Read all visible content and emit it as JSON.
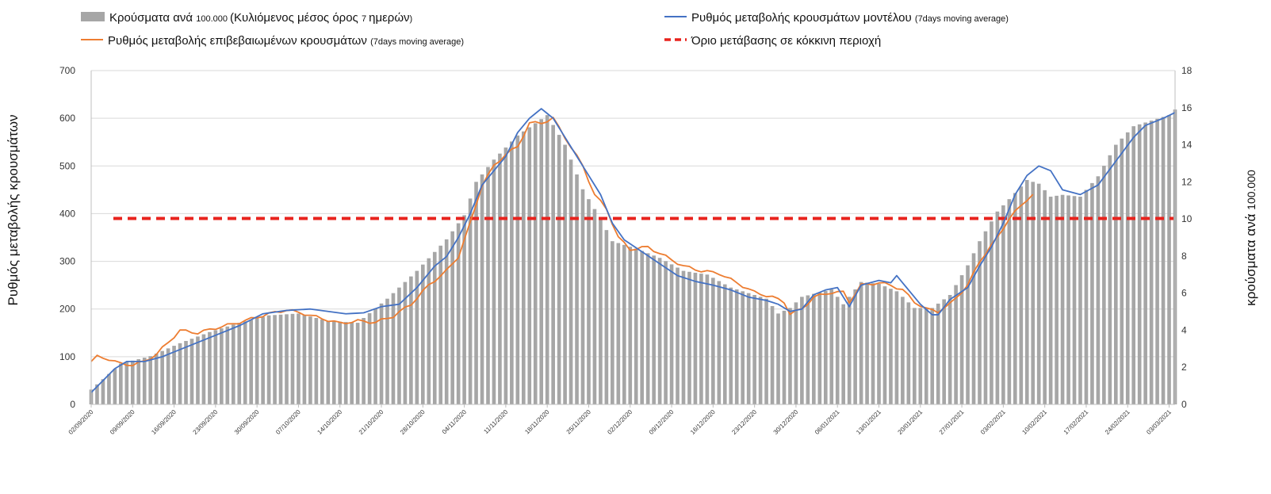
{
  "chart_data": {
    "type": "bar+line",
    "legend": {
      "bars": {
        "main": "Κρούσματα ανά ",
        "small": "100.000 ",
        "main2": "(Κυλιόμενος μέσος όρος ",
        "small2": "7 ",
        "main3": "ημερών",
        "small3": ")"
      },
      "confirmed": {
        "main": "Ρυθμός μεταβολής επιβεβαιωμένων κρουσμάτων ",
        "small": "(7days moving average)"
      },
      "model": {
        "main": "Ρυθμός μεταβολής κρουσμάτων μοντέλου ",
        "small": "(7days moving average)"
      },
      "threshold": {
        "main": "Όριο μετάβασης σε κόκκινη περιοχή"
      }
    },
    "y_left": {
      "label": "Ρυθμός μεταβολής κρουσμάτων",
      "min": 0,
      "max": 700,
      "ticks": [
        "0",
        "100",
        "200",
        "300",
        "400",
        "500",
        "600",
        "700"
      ]
    },
    "y_right": {
      "label_main": "κρούσματα ανά ",
      "label_small": "100.000",
      "min": 0,
      "max": 18,
      "ticks": [
        "0",
        "2",
        "4",
        "6",
        "8",
        "10",
        "12",
        "14",
        "16",
        "18"
      ]
    },
    "x_labels": [
      "02/09/2020",
      "09/09/2020",
      "16/09/2020",
      "23/09/2020",
      "30/09/2020",
      "07/10/2020",
      "14/10/2020",
      "21/10/2020",
      "28/10/2020",
      "04/11/2020",
      "11/11/2020",
      "18/11/2020",
      "25/11/2020",
      "02/12/2020",
      "09/12/2020",
      "16/12/2020",
      "23/12/2020",
      "30/12/2020",
      "06/01/2021",
      "13/01/2021",
      "20/01/2021",
      "27/01/2021",
      "03/02/2021",
      "10/02/2021",
      "17/02/2021",
      "24/02/2021",
      "03/03/2021"
    ],
    "x_label_days": [
      0,
      7,
      14,
      21,
      28,
      35,
      42,
      49,
      56,
      63,
      70,
      77,
      84,
      91,
      98,
      105,
      112,
      119,
      126,
      133,
      140,
      147,
      154,
      161,
      168,
      175,
      182
    ],
    "n_days": 184,
    "threshold_value": 390,
    "colors": {
      "bars": "#a6a6a6",
      "confirmed": "#ed7d31",
      "model": "#4472c4",
      "threshold": "#e8231d"
    },
    "bars_anchors": [
      [
        0,
        0.8
      ],
      [
        5,
        2.2
      ],
      [
        10,
        2.6
      ],
      [
        15,
        3.3
      ],
      [
        20,
        3.9
      ],
      [
        25,
        4.4
      ],
      [
        30,
        4.8
      ],
      [
        35,
        4.9
      ],
      [
        40,
        4.5
      ],
      [
        45,
        4.4
      ],
      [
        50,
        5.7
      ],
      [
        55,
        7.2
      ],
      [
        60,
        8.9
      ],
      [
        63,
        10.2
      ],
      [
        65,
        12.0
      ],
      [
        68,
        13.2
      ],
      [
        72,
        14.5
      ],
      [
        77,
        15.6
      ],
      [
        80,
        14.0
      ],
      [
        83,
        11.6
      ],
      [
        86,
        10.0
      ],
      [
        88,
        8.8
      ],
      [
        92,
        8.4
      ],
      [
        96,
        7.9
      ],
      [
        100,
        7.2
      ],
      [
        104,
        7.0
      ],
      [
        108,
        6.3
      ],
      [
        112,
        5.9
      ],
      [
        114,
        5.7
      ],
      [
        116,
        4.9
      ],
      [
        118,
        5.2
      ],
      [
        120,
        5.8
      ],
      [
        125,
        6.2
      ],
      [
        127,
        5.4
      ],
      [
        130,
        6.6
      ],
      [
        133,
        6.5
      ],
      [
        136,
        6.1
      ],
      [
        139,
        5.2
      ],
      [
        142,
        5.2
      ],
      [
        145,
        5.9
      ],
      [
        148,
        7.5
      ],
      [
        150,
        8.8
      ],
      [
        153,
        10.4
      ],
      [
        156,
        11.4
      ],
      [
        158,
        12.1
      ],
      [
        160,
        11.9
      ],
      [
        162,
        11.2
      ],
      [
        164,
        11.3
      ],
      [
        167,
        11.2
      ],
      [
        170,
        12.3
      ],
      [
        173,
        14.0
      ],
      [
        176,
        15.0
      ],
      [
        180,
        15.4
      ],
      [
        182,
        15.6
      ],
      [
        183,
        15.9
      ]
    ],
    "confirmed_anchors": [
      [
        0,
        90
      ],
      [
        1,
        100
      ],
      [
        3,
        95
      ],
      [
        5,
        85
      ],
      [
        7,
        83
      ],
      [
        9,
        90
      ],
      [
        11,
        105
      ],
      [
        13,
        130
      ],
      [
        15,
        155
      ],
      [
        18,
        150
      ],
      [
        21,
        160
      ],
      [
        25,
        172
      ],
      [
        30,
        190
      ],
      [
        33,
        198
      ],
      [
        36,
        190
      ],
      [
        39,
        180
      ],
      [
        42,
        170
      ],
      [
        45,
        175
      ],
      [
        48,
        172
      ],
      [
        51,
        185
      ],
      [
        54,
        210
      ],
      [
        57,
        250
      ],
      [
        60,
        280
      ],
      [
        62,
        310
      ],
      [
        64,
        380
      ],
      [
        66,
        460
      ],
      [
        68,
        500
      ],
      [
        70,
        525
      ],
      [
        72,
        540
      ],
      [
        74,
        590
      ],
      [
        76,
        590
      ],
      [
        78,
        600
      ],
      [
        80,
        560
      ],
      [
        83,
        500
      ],
      [
        85,
        440
      ],
      [
        87,
        410
      ],
      [
        89,
        350
      ],
      [
        91,
        325
      ],
      [
        94,
        330
      ],
      [
        97,
        310
      ],
      [
        100,
        290
      ],
      [
        103,
        280
      ],
      [
        106,
        275
      ],
      [
        109,
        255
      ],
      [
        112,
        235
      ],
      [
        115,
        225
      ],
      [
        117,
        215
      ],
      [
        118,
        190
      ],
      [
        120,
        200
      ],
      [
        122,
        225
      ],
      [
        125,
        235
      ],
      [
        127,
        235
      ],
      [
        128,
        215
      ],
      [
        130,
        250
      ],
      [
        133,
        255
      ],
      [
        135,
        250
      ],
      [
        137,
        240
      ],
      [
        139,
        215
      ],
      [
        141,
        200
      ],
      [
        143,
        195
      ],
      [
        145,
        210
      ],
      [
        148,
        250
      ],
      [
        150,
        300
      ],
      [
        153,
        350
      ],
      [
        155,
        390
      ],
      [
        158,
        430
      ],
      [
        159,
        440
      ]
    ],
    "model_anchors": [
      [
        0,
        25
      ],
      [
        2,
        50
      ],
      [
        4,
        75
      ],
      [
        6,
        90
      ],
      [
        9,
        90
      ],
      [
        12,
        100
      ],
      [
        15,
        115
      ],
      [
        18,
        130
      ],
      [
        21,
        145
      ],
      [
        25,
        165
      ],
      [
        29,
        190
      ],
      [
        33,
        197
      ],
      [
        37,
        200
      ],
      [
        40,
        195
      ],
      [
        43,
        190
      ],
      [
        46,
        192
      ],
      [
        49,
        205
      ],
      [
        52,
        210
      ],
      [
        55,
        245
      ],
      [
        58,
        290
      ],
      [
        60,
        310
      ],
      [
        62,
        350
      ],
      [
        64,
        400
      ],
      [
        66,
        460
      ],
      [
        68,
        490
      ],
      [
        70,
        520
      ],
      [
        72,
        570
      ],
      [
        74,
        600
      ],
      [
        76,
        620
      ],
      [
        78,
        600
      ],
      [
        80,
        560
      ],
      [
        83,
        500
      ],
      [
        86,
        440
      ],
      [
        88,
        380
      ],
      [
        90,
        345
      ],
      [
        93,
        320
      ],
      [
        96,
        295
      ],
      [
        99,
        270
      ],
      [
        102,
        258
      ],
      [
        105,
        250
      ],
      [
        108,
        240
      ],
      [
        111,
        225
      ],
      [
        114,
        218
      ],
      [
        116,
        210
      ],
      [
        118,
        195
      ],
      [
        120,
        200
      ],
      [
        122,
        230
      ],
      [
        124,
        240
      ],
      [
        126,
        245
      ],
      [
        128,
        205
      ],
      [
        130,
        250
      ],
      [
        133,
        260
      ],
      [
        135,
        255
      ],
      [
        136,
        270
      ],
      [
        138,
        240
      ],
      [
        140,
        210
      ],
      [
        142,
        188
      ],
      [
        143,
        188
      ],
      [
        145,
        220
      ],
      [
        148,
        245
      ],
      [
        150,
        290
      ],
      [
        152,
        330
      ],
      [
        154,
        380
      ],
      [
        156,
        440
      ],
      [
        158,
        480
      ],
      [
        160,
        500
      ],
      [
        162,
        490
      ],
      [
        164,
        450
      ],
      [
        167,
        440
      ],
      [
        170,
        460
      ],
      [
        173,
        510
      ],
      [
        176,
        560
      ],
      [
        178,
        585
      ],
      [
        181,
        600
      ],
      [
        183,
        612
      ]
    ]
  }
}
